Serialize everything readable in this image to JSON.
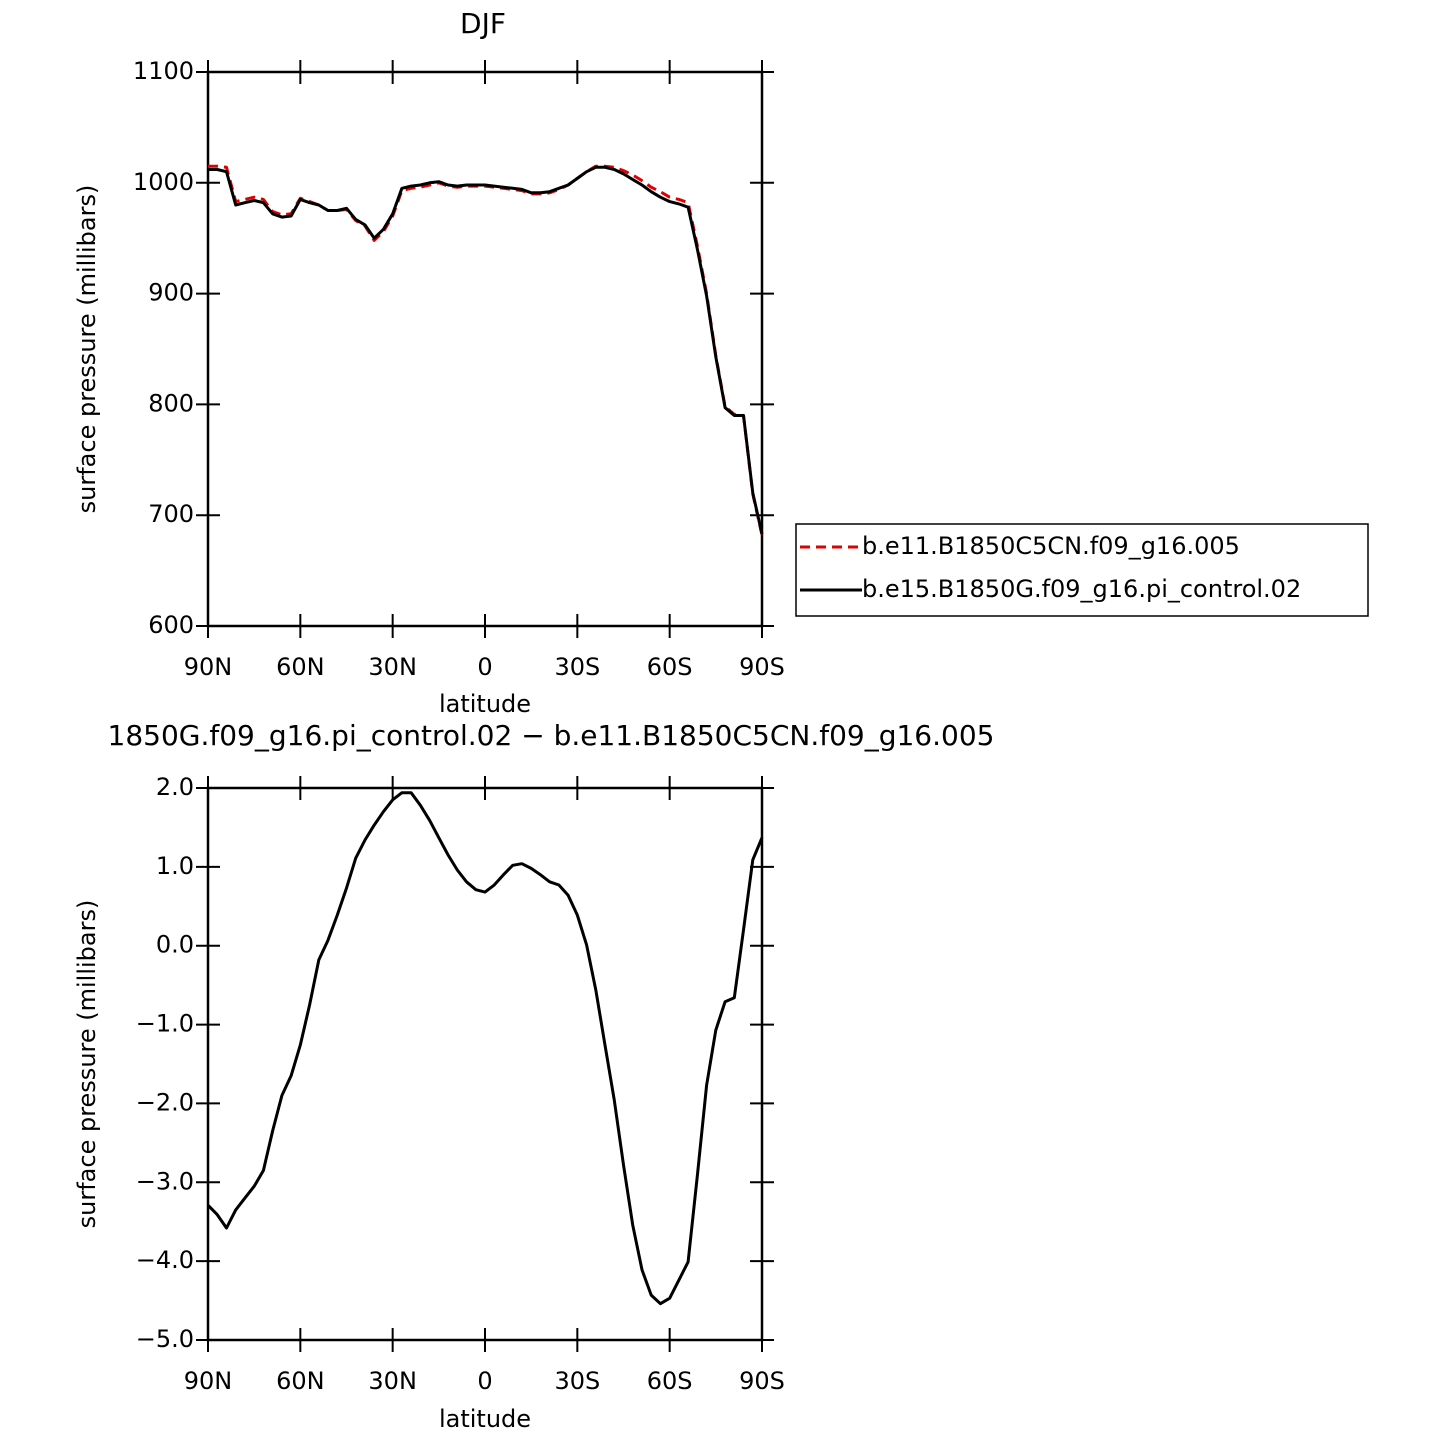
{
  "chart_data": [
    {
      "type": "line",
      "title": "DJF",
      "xlabel": "latitude",
      "ylabel": "surface pressure (millibars)",
      "x": [
        90,
        87,
        84,
        81,
        78,
        75,
        72,
        69,
        66,
        63,
        60,
        57,
        54,
        51,
        48,
        45,
        42,
        39,
        36,
        33,
        30,
        27,
        24,
        21,
        18,
        15,
        12,
        9,
        6,
        3,
        0,
        -3,
        -6,
        -9,
        -12,
        -15,
        -18,
        -21,
        -24,
        -27,
        -30,
        -33,
        -36,
        -39,
        -42,
        -45,
        -48,
        -51,
        -54,
        -57,
        -60,
        -63,
        -66,
        -69,
        -72,
        -75,
        -78,
        -81,
        -84,
        -87,
        -90
      ],
      "series": [
        {
          "name": "b.e11.B1850C5CN.f09_g16.005",
          "color": "#e00000",
          "dashed": true,
          "values": [
            1015,
            1015,
            1014,
            983,
            985,
            987,
            985,
            974,
            971,
            972,
            986,
            983,
            980,
            975,
            975,
            976,
            966,
            961,
            948,
            956,
            970,
            993,
            995,
            996,
            998,
            1000,
            997,
            996,
            997,
            997,
            997,
            996,
            995,
            994,
            993,
            990,
            990,
            991,
            994,
            998,
            1004,
            1010,
            1015,
            1015,
            1014,
            1011,
            1007,
            1002,
            996,
            992,
            987,
            985,
            982,
            943,
            900,
            844,
            798,
            791,
            790,
            719,
            682
          ]
        },
        {
          "name": "b.e15.B1850G.f09_g16.pi_control.02",
          "color": "#000000",
          "dashed": false,
          "values": [
            1012,
            1012,
            1010,
            980,
            982,
            984,
            982,
            972,
            969,
            970,
            985,
            982,
            980,
            975,
            975,
            977,
            967,
            962,
            950,
            958,
            972,
            995,
            997,
            998,
            1000,
            1001,
            998,
            997,
            998,
            998,
            998,
            997,
            996,
            995,
            994,
            991,
            991,
            992,
            995,
            998,
            1004,
            1010,
            1014,
            1014,
            1012,
            1008,
            1003,
            998,
            992,
            987,
            983,
            981,
            978,
            940,
            898,
            843,
            797,
            790,
            790,
            720,
            683
          ]
        }
      ],
      "xlim": [
        90,
        -90
      ],
      "xticks": [
        {
          "value": 90,
          "label": "90N"
        },
        {
          "value": 60,
          "label": "60N"
        },
        {
          "value": 30,
          "label": "30N"
        },
        0,
        {
          "value": -30,
          "label": "30S"
        },
        {
          "value": -60,
          "label": "60S"
        },
        {
          "value": -90,
          "label": "90S"
        }
      ],
      "ylim": [
        600,
        1100
      ],
      "yticks": [
        600,
        700,
        800,
        900,
        1000,
        1100
      ],
      "grid": false,
      "legend": "right"
    },
    {
      "type": "line",
      "title": "1850G.f09_g16.pi_control.02 − b.e11.B1850C5CN.f09_g16.005",
      "xlabel": "latitude",
      "ylabel": "surface pressure (millibars)",
      "x": [
        90,
        87,
        84,
        81,
        78,
        75,
        72,
        69,
        66,
        63,
        60,
        57,
        54,
        51,
        48,
        45,
        42,
        39,
        36,
        33,
        30,
        27,
        24,
        21,
        18,
        15,
        12,
        9,
        6,
        3,
        0,
        -3,
        -6,
        -9,
        -12,
        -15,
        -18,
        -21,
        -24,
        -27,
        -30,
        -33,
        -36,
        -39,
        -42,
        -45,
        -48,
        -51,
        -54,
        -57,
        -60,
        -63,
        -66,
        -69,
        -72,
        -75,
        -78,
        -81,
        -84,
        -87,
        -90
      ],
      "values": [
        -3.29,
        -3.41,
        -3.58,
        -3.35,
        -3.2,
        -3.05,
        -2.85,
        -2.35,
        -1.9,
        -1.65,
        -1.26,
        -0.75,
        -0.18,
        0.07,
        0.39,
        0.73,
        1.11,
        1.34,
        1.53,
        1.7,
        1.85,
        1.94,
        1.94,
        1.78,
        1.59,
        1.37,
        1.15,
        0.96,
        0.81,
        0.71,
        0.68,
        0.77,
        0.9,
        1.02,
        1.04,
        0.98,
        0.9,
        0.81,
        0.77,
        0.64,
        0.39,
        0.01,
        -0.56,
        -1.26,
        -1.96,
        -2.78,
        -3.54,
        -4.11,
        -4.43,
        -4.54,
        -4.47,
        -4.24,
        -4.01,
        -2.91,
        -1.77,
        -1.07,
        -0.71,
        -0.66,
        0.2,
        1.09,
        1.37
      ],
      "color": "#000000",
      "xlim": [
        90,
        -90
      ],
      "xticks": [
        {
          "value": 90,
          "label": "90N"
        },
        {
          "value": 60,
          "label": "60N"
        },
        {
          "value": 30,
          "label": "30N"
        },
        0,
        {
          "value": -30,
          "label": "30S"
        },
        {
          "value": -60,
          "label": "60S"
        },
        {
          "value": -90,
          "label": "90S"
        }
      ],
      "ylim": [
        -5,
        2
      ],
      "yticks": [
        {
          "value": -5,
          "label": "−5.0"
        },
        {
          "value": -4,
          "label": "−4.0"
        },
        {
          "value": -3,
          "label": "−3.0"
        },
        {
          "value": -2,
          "label": "−2.0"
        },
        {
          "value": -1,
          "label": "−1.0"
        },
        {
          "value": 0,
          "label": "0.0"
        },
        {
          "value": 1,
          "label": "1.0"
        },
        {
          "value": 2,
          "label": "2.0"
        }
      ],
      "grid": false
    }
  ]
}
